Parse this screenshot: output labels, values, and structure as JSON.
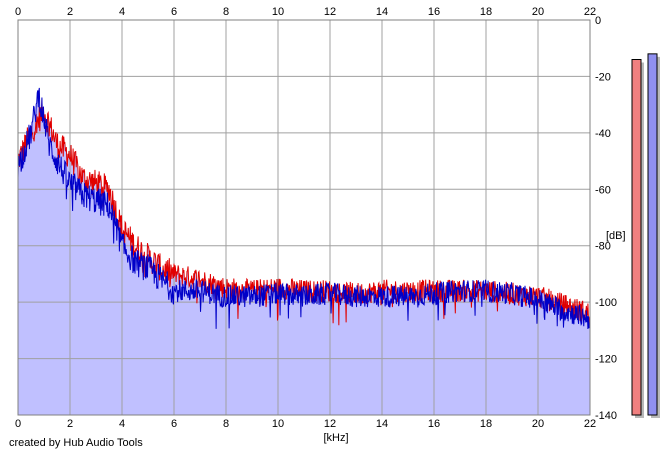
{
  "chart_data": {
    "type": "area",
    "xlabel": "[kHz]",
    "ylabel": "[dB]",
    "xlim": [
      0,
      22
    ],
    "ylim": [
      -140,
      0
    ],
    "x_ticks": [
      "0",
      "2",
      "4",
      "6",
      "8",
      "10",
      "12",
      "14",
      "16",
      "18",
      "20",
      "22"
    ],
    "y_ticks": [
      "0",
      "-20",
      "-40",
      "-60",
      "-80",
      "-100",
      "-120",
      "-140"
    ],
    "grid": true,
    "series": [
      {
        "channel": "left",
        "color": "#e00000",
        "points": [
          [
            0,
            -50
          ],
          [
            0.5,
            -40
          ],
          [
            1,
            -32
          ],
          [
            1.5,
            -44
          ],
          [
            2,
            -48
          ],
          [
            2.5,
            -56
          ],
          [
            3,
            -58
          ],
          [
            3.5,
            -60
          ],
          [
            4,
            -74
          ],
          [
            4.5,
            -80
          ],
          [
            5,
            -84
          ],
          [
            5.5,
            -88
          ],
          [
            6,
            -90
          ],
          [
            7,
            -92
          ],
          [
            8,
            -95
          ],
          [
            9,
            -96
          ],
          [
            10,
            -95
          ],
          [
            11,
            -96
          ],
          [
            12,
            -96
          ],
          [
            13,
            -97
          ],
          [
            14,
            -96
          ],
          [
            15,
            -96
          ],
          [
            16,
            -96
          ],
          [
            17,
            -96
          ],
          [
            18,
            -96
          ],
          [
            19,
            -97
          ],
          [
            20,
            -98
          ],
          [
            21,
            -101
          ],
          [
            22,
            -104
          ]
        ]
      },
      {
        "channel": "right",
        "color": "#0000c8",
        "points": [
          [
            0,
            -52
          ],
          [
            0.5,
            -40
          ],
          [
            0.8,
            -26
          ],
          [
            1.2,
            -44
          ],
          [
            1.5,
            -50
          ],
          [
            2,
            -58
          ],
          [
            2.5,
            -62
          ],
          [
            3,
            -64
          ],
          [
            3.5,
            -66
          ],
          [
            4,
            -80
          ],
          [
            4.5,
            -86
          ],
          [
            5,
            -88
          ],
          [
            5.5,
            -92
          ],
          [
            6,
            -96
          ],
          [
            7,
            -96
          ],
          [
            8,
            -98
          ],
          [
            9,
            -98
          ],
          [
            10,
            -97
          ],
          [
            11,
            -98
          ],
          [
            12,
            -97
          ],
          [
            13,
            -98
          ],
          [
            14,
            -98
          ],
          [
            15,
            -98
          ],
          [
            16,
            -97
          ],
          [
            17,
            -96
          ],
          [
            18,
            -96
          ],
          [
            19,
            -97
          ],
          [
            20,
            -99
          ],
          [
            21,
            -103
          ],
          [
            22,
            -106
          ]
        ]
      }
    ],
    "fill_color": "#c0c0ff",
    "meters": {
      "left": {
        "color": "#f08080",
        "level_db": -14
      },
      "right": {
        "color": "#9090f0",
        "level_db": -12
      }
    }
  },
  "footer_text": "created by Hub Audio Tools"
}
